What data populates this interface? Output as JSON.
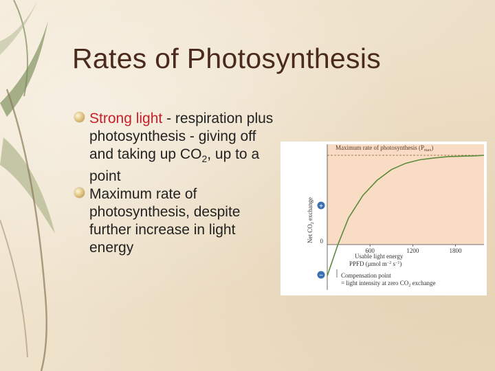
{
  "slide": {
    "title": "Rates of Photosynthesis",
    "bullets": [
      {
        "highlight": "Strong light",
        "text_main": " - respiration plus photosynthesis - giving off and taking up CO",
        "sub": "2",
        "text_tail": ", up to a point"
      },
      {
        "text": "Maximum rate of photosynthesis, despite further increase in light energy"
      }
    ]
  },
  "figure": {
    "max_label": "Maximum rate of photosynthesis (P",
    "max_sub": "max",
    "max_close": ")",
    "ylabel_prefix": "Net CO",
    "ylabel_sub": "2",
    "ylabel_suffix": " exchange",
    "plus_sign": "+",
    "minus_sign": "−",
    "zero_label": "0",
    "xlabel_line1": "Usable light energy",
    "xlabel_line2": "PPFD (μmol m",
    "xlabel_sup1": "−2",
    "xlabel_mid": " s",
    "xlabel_sup2": "−1",
    "xlabel_close": ")",
    "compensation_line1": "Compensation point",
    "compensation_line2": "= light intensity at zero CO",
    "compensation_sub": "2",
    "compensation_tail": " exchange",
    "colors": {
      "shade": "#f8dcc4",
      "curve": "#5a8a3a",
      "plus_circle": "#3a6fb0",
      "minus_circle": "#3a6fb0"
    }
  },
  "chart_data": {
    "type": "line",
    "title": "",
    "xlabel": "Usable light energy PPFD (μmol m−2 s−1)",
    "ylabel": "Net CO2 exchange",
    "x_ticks": [
      600,
      1200,
      1800
    ],
    "xlim": [
      0,
      2200
    ],
    "series": [
      {
        "x": [
          0,
          150,
          300,
          500,
          700,
          900,
          1100,
          1300,
          1500,
          1700,
          1900,
          2100,
          2200
        ],
        "y": [
          -0.35,
          0,
          0.3,
          0.55,
          0.72,
          0.84,
          0.91,
          0.95,
          0.97,
          0.985,
          0.99,
          0.995,
          1.0
        ]
      }
    ],
    "ylim": [
      -0.6,
      1.15
    ],
    "annotations": [
      "Maximum rate of photosynthesis (Pmax)",
      "Compensation point = light intensity at zero CO2 exchange"
    ]
  }
}
